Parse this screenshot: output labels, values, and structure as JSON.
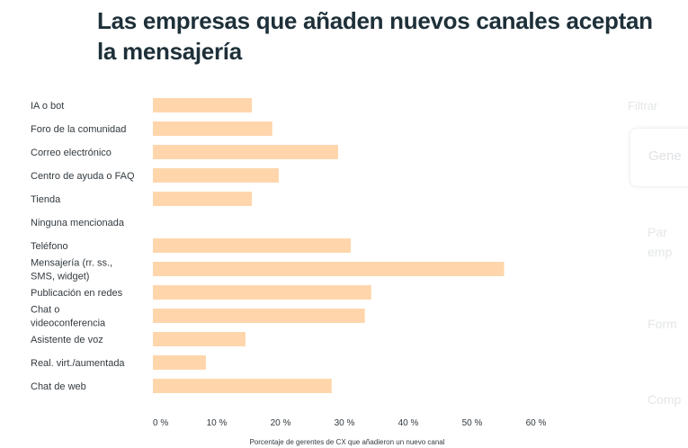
{
  "chart_data": {
    "type": "bar",
    "orientation": "horizontal",
    "title": "Las empresas que añaden nuevos canales aceptan la mensajería",
    "categories": [
      "IA o bot",
      "Foro de la comunidad",
      "Correo electrónico",
      "Centro de ayuda o FAQ",
      "Tienda",
      "Ninguna mencionada",
      "Teléfono",
      "Mensajería (rr. ss., SMS, widget)",
      "Publicación en redes",
      "Chat o videoconferencia",
      "Asistente de voz",
      "Real. virt./aumentada",
      "Chat de web"
    ],
    "category_lines": [
      [
        "IA o bot"
      ],
      [
        "Foro de la comunidad"
      ],
      [
        "Correo electrónico"
      ],
      [
        "Centro de ayuda o FAQ"
      ],
      [
        "Tienda"
      ],
      [
        "Ninguna mencionada"
      ],
      [
        "Teléfono"
      ],
      [
        "Mensajería (rr. ss.,",
        "SMS, widget)"
      ],
      [
        "Publicación en redes"
      ],
      [
        "Chat o",
        "videoconferencia"
      ],
      [
        "Asistente de voz"
      ],
      [
        "Real. virt./aumentada"
      ],
      [
        "Chat de web"
      ]
    ],
    "values": [
      15.5,
      18.7,
      29,
      19.7,
      15.5,
      0,
      31,
      55,
      34.2,
      33.2,
      14.5,
      8.3,
      28
    ],
    "xlim": [
      0,
      60
    ],
    "xticks": [
      0,
      10,
      20,
      30,
      40,
      50,
      60
    ],
    "xtick_labels": [
      "0 %",
      "10 %",
      "20 %",
      "30 %",
      "40 %",
      "50 %",
      "60 %"
    ],
    "xlabel": "Porcentaje de gerentes de CX que añadieron un nuevo canal",
    "ylabel": "",
    "grid": false,
    "bar_color": "#ffd6ac"
  },
  "background_panel": {
    "labels": [
      "Filtrar",
      "Gene",
      "Par",
      "emp",
      "Form",
      "Comp"
    ]
  }
}
